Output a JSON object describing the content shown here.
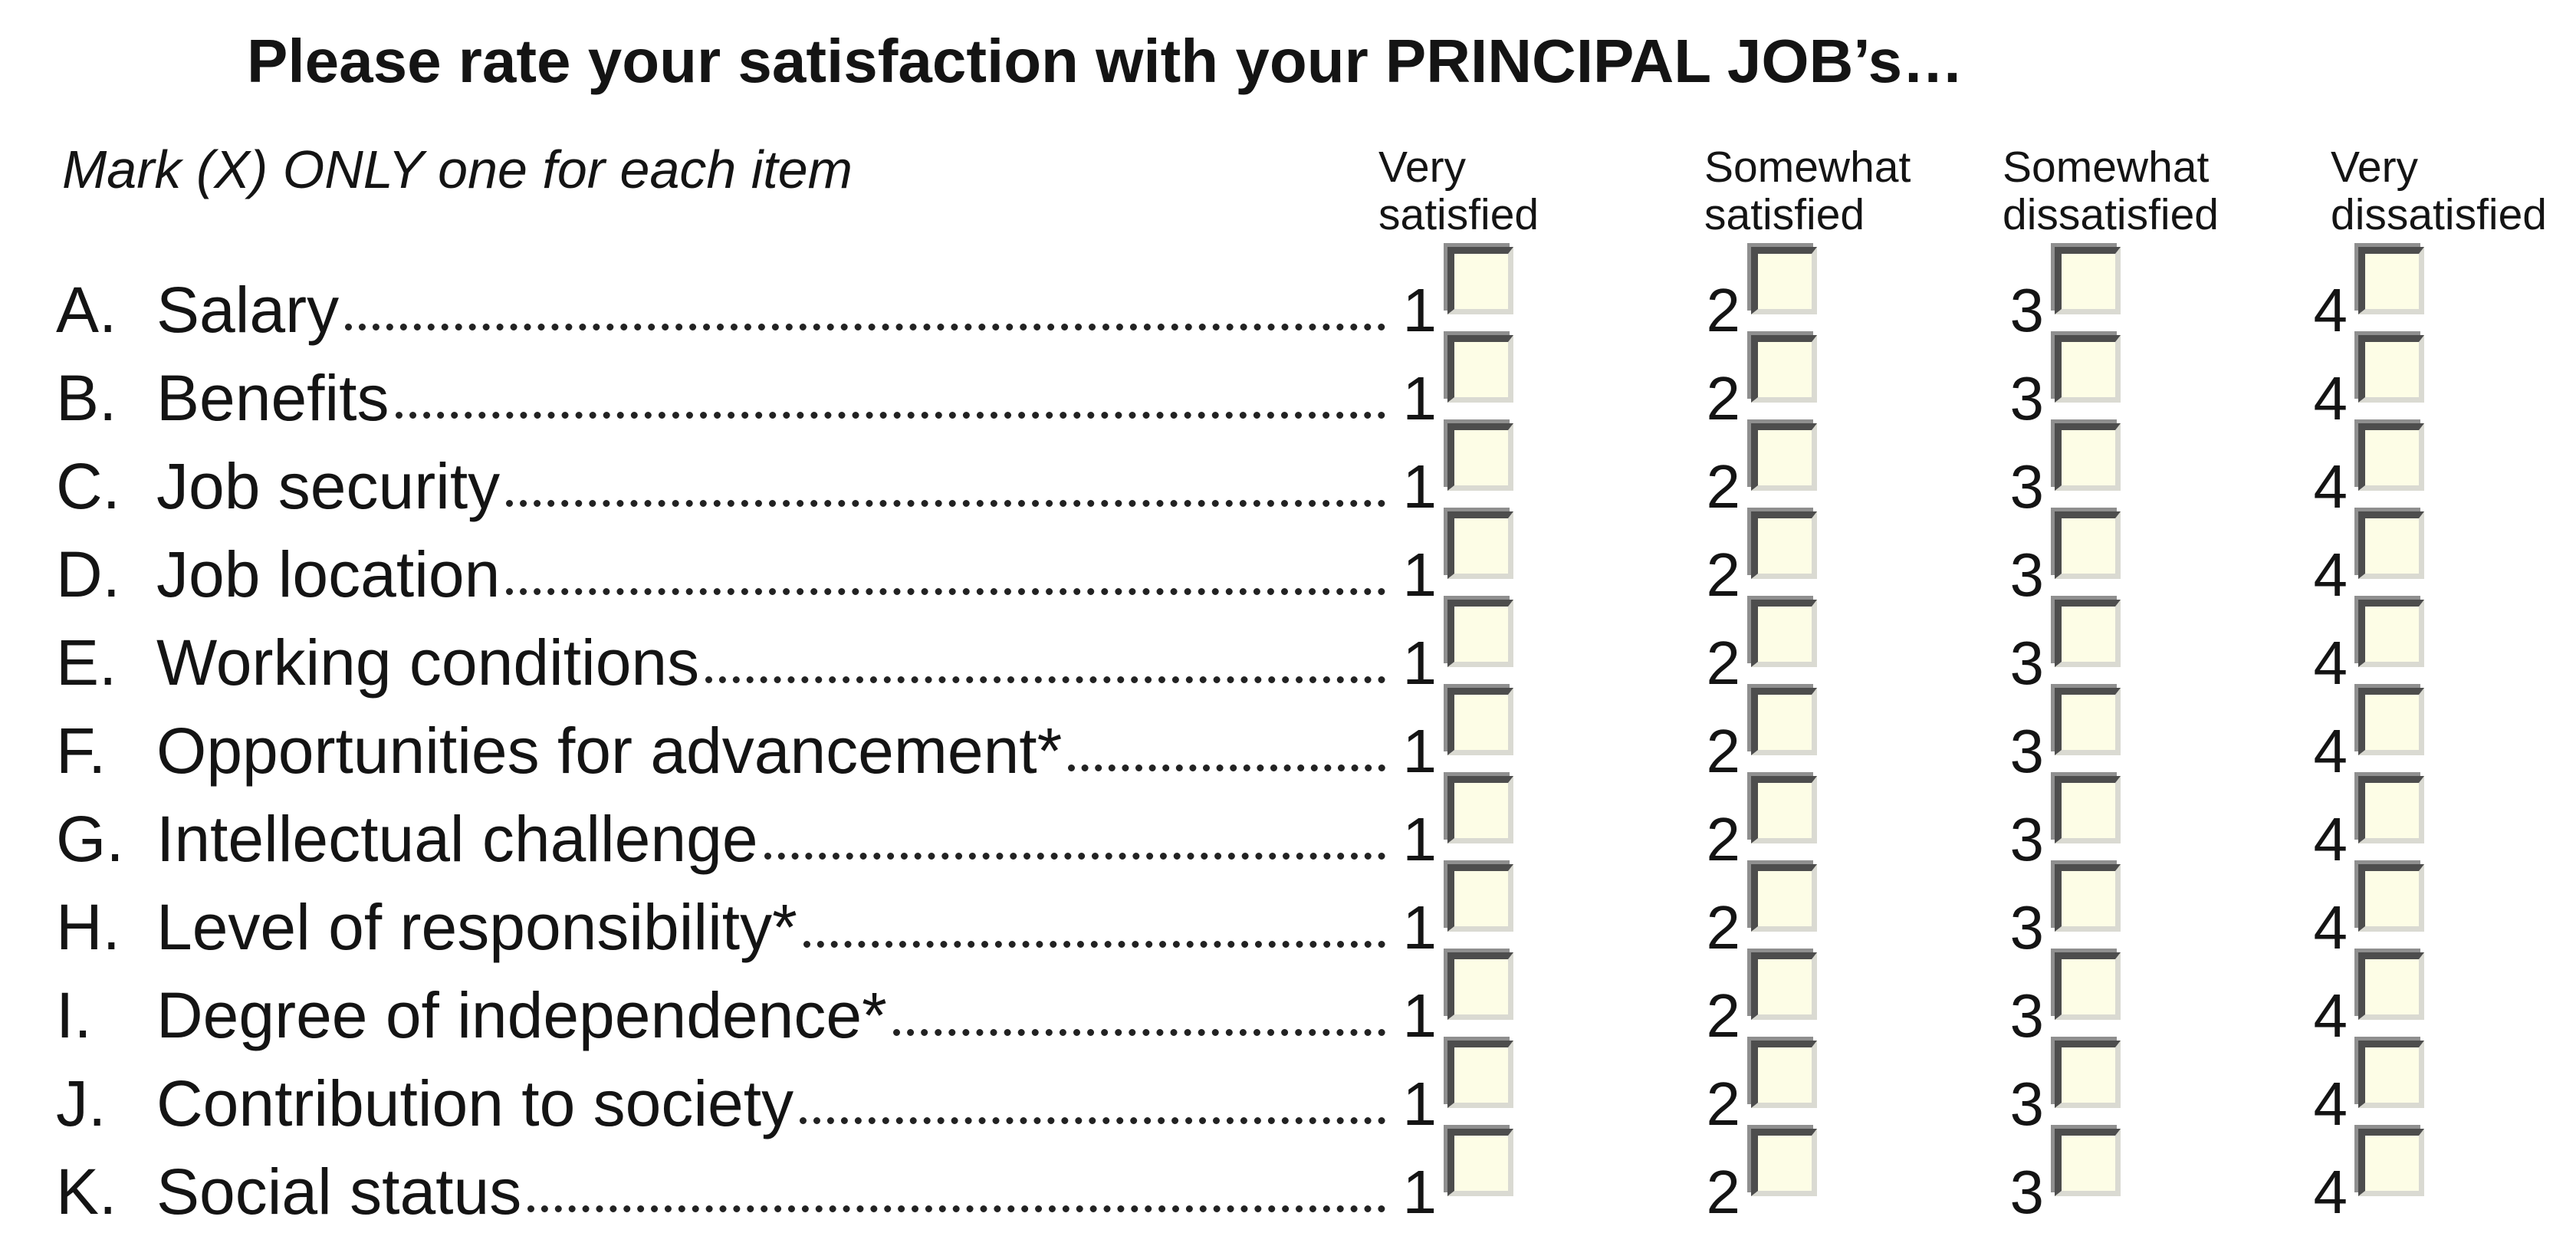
{
  "form": {
    "title": "Please rate your satisfaction with your PRINCIPAL JOB’s…",
    "instruction": "Mark (X) ONLY one for each item",
    "columns": [
      {
        "value": "1",
        "label": "Very\nsatisfied"
      },
      {
        "value": "2",
        "label": "Somewhat\nsatisfied"
      },
      {
        "value": "3",
        "label": "Somewhat\ndissatisfied"
      },
      {
        "value": "4",
        "label": "Very\ndissatisfied"
      }
    ],
    "rows": [
      {
        "letter": "A.",
        "label": "Salary"
      },
      {
        "letter": "B.",
        "label": "Benefits"
      },
      {
        "letter": "C.",
        "label": "Job security"
      },
      {
        "letter": "D.",
        "label": "Job location"
      },
      {
        "letter": "E.",
        "label": "Working conditions"
      },
      {
        "letter": "F.",
        "label": "Opportunities for advancement*"
      },
      {
        "letter": "G.",
        "label": "Intellectual challenge"
      },
      {
        "letter": "H.",
        "label": "Level of responsibility*"
      },
      {
        "letter": "I.",
        "label": "Degree of independence*"
      },
      {
        "letter": "J.",
        "label": "Contribution to society"
      },
      {
        "letter": "K.",
        "label": "Social status"
      }
    ],
    "checkbox_state": "unchecked",
    "colors": {
      "background": "#FFFFFF",
      "text": "#141414",
      "checkbox_fill": "#FDFDE6",
      "checkbox_border_dark": "#4D4D4D",
      "checkbox_border_light": "#DADAD2",
      "checkbox_outer_gray": "#8F8F8F"
    }
  }
}
